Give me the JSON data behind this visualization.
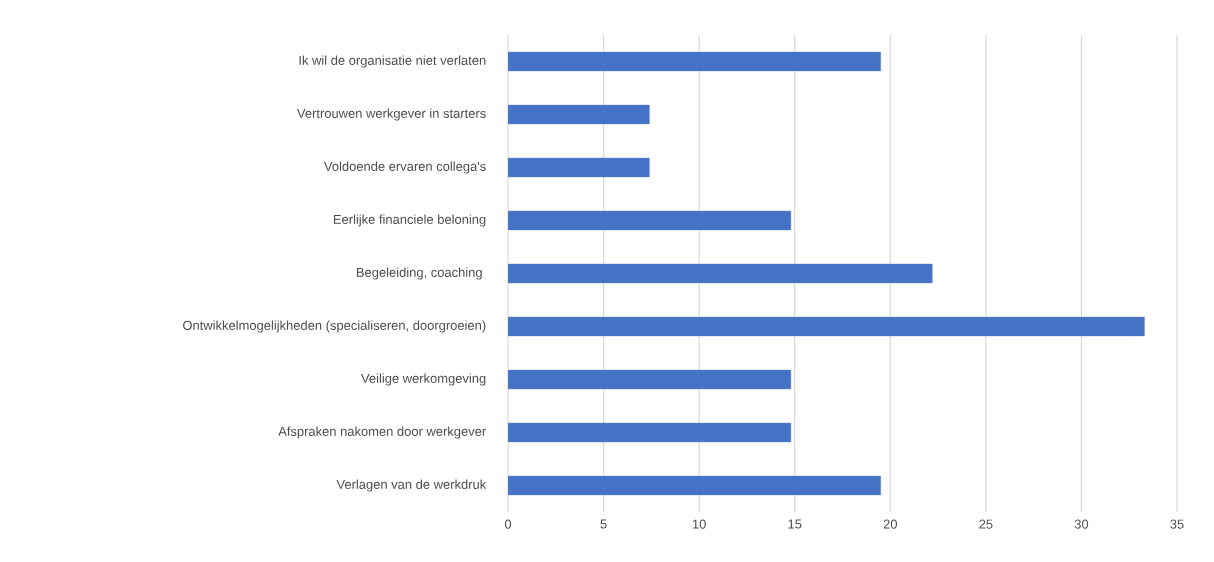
{
  "chart_data": {
    "type": "bar",
    "orientation": "horizontal",
    "categories": [
      "Ik wil de organisatie niet verlaten",
      "Vertrouwen werkgever in starters",
      "Voldoende ervaren collega's",
      "Eerlijke financiele beloning",
      "Begeleiding, coaching ",
      "Ontwikkelmogelijkheden (specialiseren, doorgroeien)",
      "Veilige werkomgeving",
      "Afspraken nakomen door werkgever",
      "Verlagen van de werkdruk"
    ],
    "values": [
      19.5,
      7.4,
      7.4,
      14.8,
      22.2,
      33.3,
      14.8,
      14.8,
      19.5
    ],
    "color": "#4472c4",
    "xlim": [
      0,
      35
    ],
    "xticks": [
      0,
      5,
      10,
      15,
      20,
      25,
      30,
      35
    ],
    "grid": "x"
  }
}
